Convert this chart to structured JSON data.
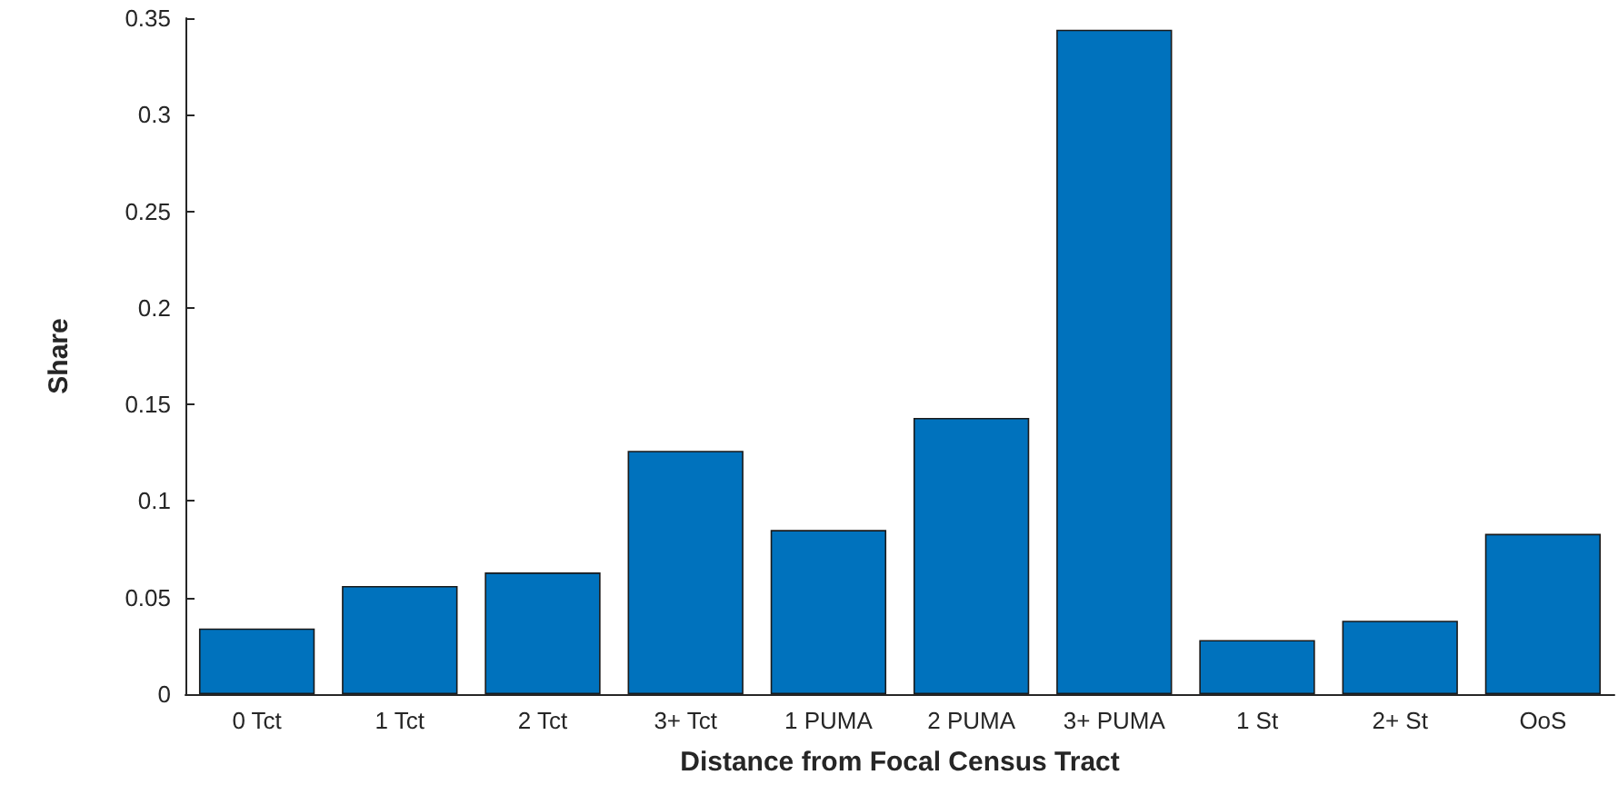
{
  "chart_data": {
    "type": "bar",
    "xlabel": "Distance from Focal Census Tract",
    "ylabel": "Share",
    "categories": [
      "0 Tct",
      "1 Tct",
      "2 Tct",
      "3+ Tct",
      "1 PUMA",
      "2 PUMA",
      "3+ PUMA",
      "1 St",
      "2+ St",
      "OoS"
    ],
    "values": [
      0.034,
      0.056,
      0.063,
      0.126,
      0.085,
      0.143,
      0.344,
      0.028,
      0.038,
      0.083
    ],
    "color": "#0072bd",
    "ylim": [
      0,
      0.35
    ],
    "yticks": [
      0,
      0.05,
      0.1,
      0.15,
      0.2,
      0.25,
      0.3,
      0.35
    ],
    "grid": false
  }
}
